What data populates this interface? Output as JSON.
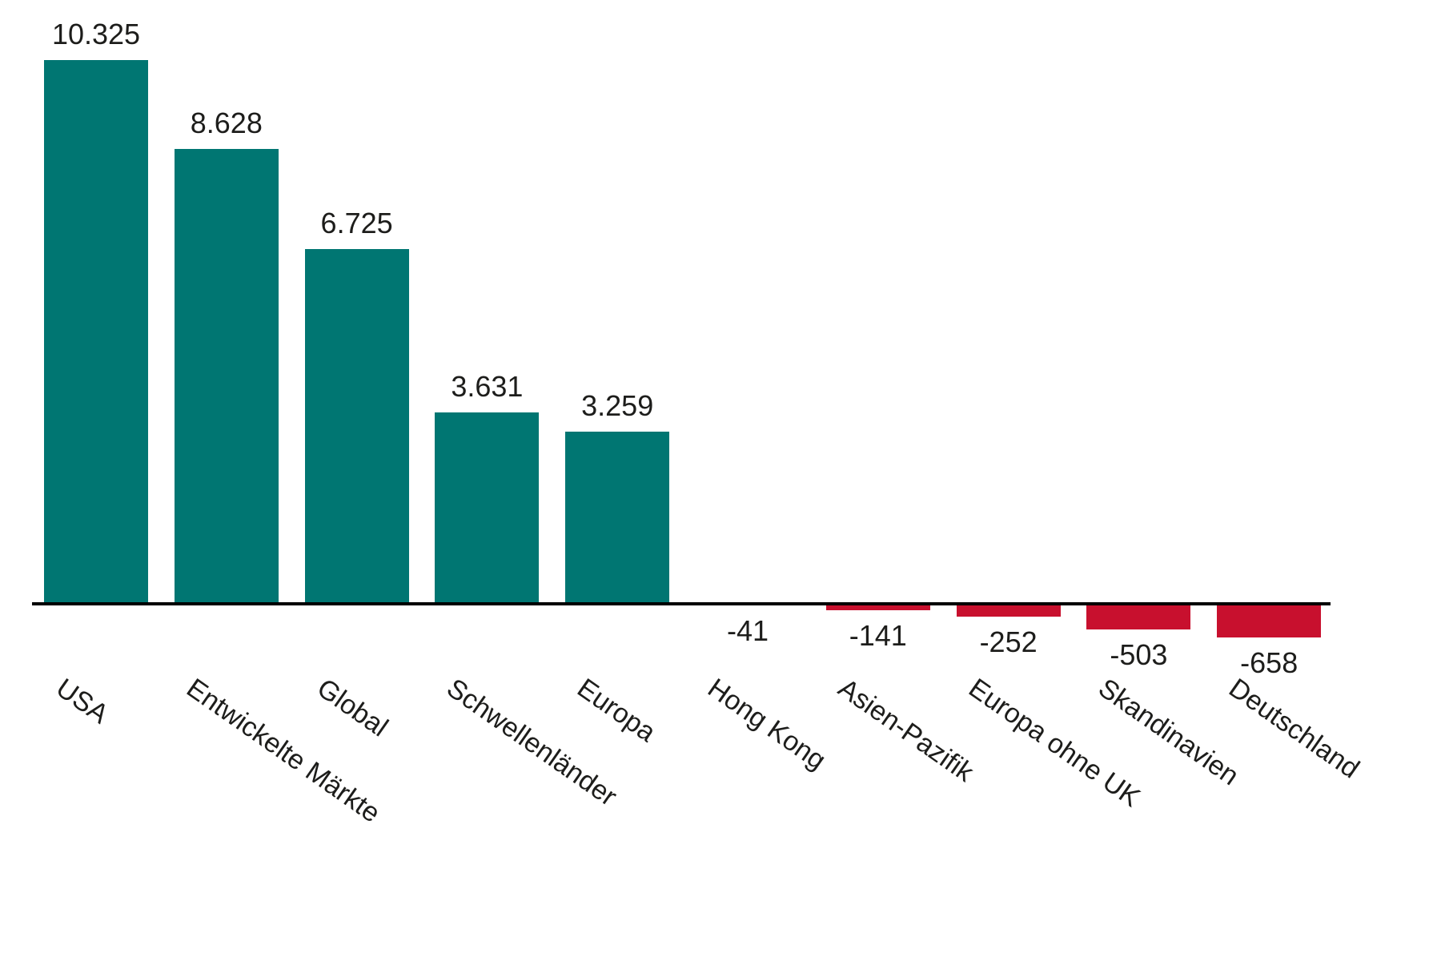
{
  "chart_data": {
    "type": "bar",
    "title": "",
    "xlabel": "",
    "ylabel": "",
    "grid": false,
    "legend": "none",
    "categories": [
      "USA",
      "Entwickelte Märkte",
      "Global",
      "Schwellenländer",
      "Europa",
      "Hong Kong",
      "Asien-Pazifik",
      "Europa ohne UK",
      "Skandinavien",
      "Deutschland"
    ],
    "values": [
      10325,
      8628,
      6725,
      3631,
      3259,
      -41,
      -141,
      -252,
      -503,
      -658
    ],
    "value_labels": [
      "10.325",
      "8.628",
      "6.725",
      "3.631",
      "3.259",
      "-41",
      "-141",
      "-252",
      "-503",
      "-658"
    ],
    "ylim": [
      -700,
      10500
    ],
    "colors": {
      "positive_bar": "#007672",
      "negative_bar": "#c8102e",
      "axis": "#000000",
      "text": "#1d1d1b",
      "background": "#ffffff"
    }
  }
}
